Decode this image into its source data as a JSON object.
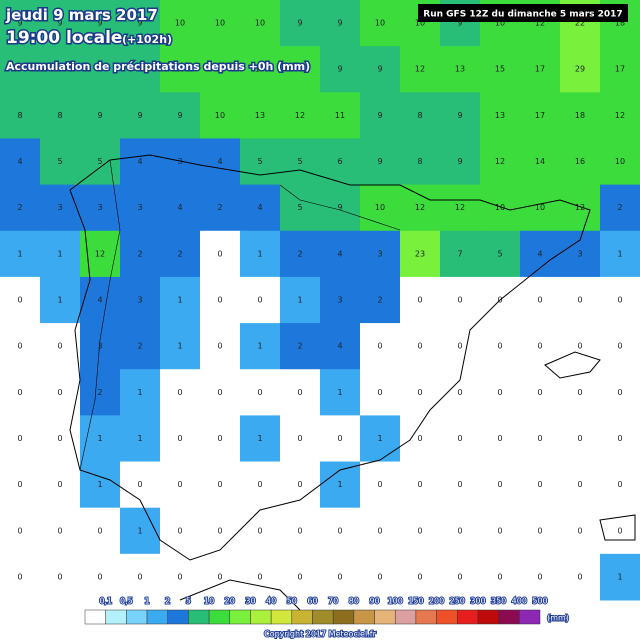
{
  "header": {
    "date": "jeudi 9 mars 2017",
    "time": "19:00 locale",
    "lead": "(+102h)",
    "subtitle": "Accumulation de précipitations depuis +0h (mm)",
    "run": "Run GFS 12Z du dimanche 5 mars 2017"
  },
  "grid": {
    "rows": [
      [
        9,
        9,
        9,
        9,
        10,
        10,
        10,
        9,
        9,
        10,
        10,
        9,
        10,
        12,
        22,
        18
      ],
      [
        9,
        9,
        9,
        9,
        10,
        10,
        10,
        10,
        9,
        9,
        12,
        13,
        15,
        17,
        29,
        17
      ],
      [
        8,
        8,
        9,
        9,
        9,
        10,
        13,
        12,
        11,
        9,
        8,
        9,
        13,
        17,
        18,
        12
      ],
      [
        4,
        5,
        5,
        4,
        3,
        4,
        5,
        5,
        6,
        9,
        8,
        9,
        12,
        14,
        16,
        10
      ],
      [
        2,
        3,
        3,
        3,
        4,
        2,
        4,
        5,
        9,
        10,
        12,
        12,
        10,
        10,
        12,
        2
      ],
      [
        1,
        1,
        12,
        2,
        2,
        0,
        1,
        2,
        4,
        3,
        23,
        7,
        5,
        4,
        3,
        1
      ],
      [
        0,
        1,
        4,
        3,
        1,
        0,
        0,
        1,
        3,
        2,
        0,
        0,
        0,
        0,
        0,
        0
      ],
      [
        0,
        0,
        3,
        2,
        1,
        0,
        1,
        2,
        4,
        0,
        0,
        0,
        0,
        0,
        0,
        0
      ],
      [
        0,
        0,
        2,
        1,
        0,
        0,
        0,
        0,
        1,
        0,
        0,
        0,
        0,
        0,
        0,
        0
      ],
      [
        0,
        0,
        1,
        1,
        0,
        0,
        1,
        0,
        0,
        1,
        0,
        0,
        0,
        0,
        0,
        0
      ],
      [
        0,
        0,
        1,
        0,
        0,
        0,
        0,
        0,
        1,
        0,
        0,
        0,
        0,
        0,
        0,
        0
      ],
      [
        0,
        0,
        0,
        1,
        0,
        0,
        0,
        0,
        0,
        0,
        0,
        0,
        0,
        0,
        0,
        0
      ],
      [
        0,
        0,
        0,
        0,
        0,
        0,
        0,
        0,
        0,
        0,
        0,
        0,
        0,
        0,
        0,
        1
      ]
    ]
  },
  "legend": {
    "levels": [
      {
        "value": 0.1,
        "label": "0,1"
      },
      {
        "value": 0.5,
        "label": "0,5"
      },
      1,
      2,
      5,
      10,
      20,
      30,
      40,
      50,
      60,
      70,
      80,
      90,
      100,
      150,
      200,
      250,
      300,
      350,
      400,
      500
    ],
    "colors": [
      "#ffffff",
      "#b4f0fa",
      "#78d2fa",
      "#3caaf0",
      "#1e78dc",
      "#28be78",
      "#3cdc3c",
      "#78f03c",
      "#aaf03c",
      "#d2e63c",
      "#c8b432",
      "#a08c28",
      "#8c6e1e",
      "#c89646",
      "#e6b478",
      "#dca0a0",
      "#e67850",
      "#f05028",
      "#e61e1e",
      "#be0a0a",
      "#8c0a50",
      "#8c28b4"
    ],
    "unit": "(mm)"
  },
  "footer": {
    "copyright": "Copyright 2017 Meteociel.fr"
  }
}
